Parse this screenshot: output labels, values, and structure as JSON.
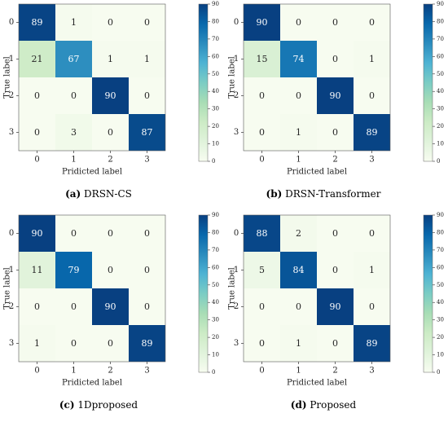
{
  "colorscale": {
    "stops": [
      "#f7fcf0",
      "#e0f3db",
      "#ccebc5",
      "#a8ddb5",
      "#7bccc4",
      "#4eb3d3",
      "#2b8cbe",
      "#0868ac",
      "#084081"
    ],
    "min": 0,
    "max": 90,
    "ticks": [
      0,
      10,
      20,
      30,
      40,
      50,
      60,
      70,
      80,
      90
    ],
    "dark_text_threshold": 45
  },
  "chart_data": [
    {
      "type": "heatmap",
      "caption_letter": "(a)",
      "caption_name": "DRSN-CS",
      "xlabel": "Pridicted label",
      "ylabel": "True label",
      "categories": [
        "0",
        "1",
        "2",
        "3"
      ],
      "values": [
        [
          89,
          1,
          0,
          0
        ],
        [
          21,
          67,
          1,
          1
        ],
        [
          0,
          0,
          90,
          0
        ],
        [
          0,
          3,
          0,
          87
        ]
      ],
      "colorbar_range": [
        0,
        90
      ]
    },
    {
      "type": "heatmap",
      "caption_letter": "(b)",
      "caption_name": "DRSN-Transformer",
      "xlabel": "Pridicted label",
      "ylabel": "True label",
      "categories": [
        "0",
        "1",
        "2",
        "3"
      ],
      "values": [
        [
          90,
          0,
          0,
          0
        ],
        [
          15,
          74,
          0,
          1
        ],
        [
          0,
          0,
          90,
          0
        ],
        [
          0,
          1,
          0,
          89
        ]
      ],
      "colorbar_range": [
        0,
        90
      ]
    },
    {
      "type": "heatmap",
      "caption_letter": "(c)",
      "caption_name": "1Dproposed",
      "xlabel": "Pridicted label",
      "ylabel": "True label",
      "categories": [
        "0",
        "1",
        "2",
        "3"
      ],
      "values": [
        [
          90,
          0,
          0,
          0
        ],
        [
          11,
          79,
          0,
          0
        ],
        [
          0,
          0,
          90,
          0
        ],
        [
          1,
          0,
          0,
          89
        ]
      ],
      "colorbar_range": [
        0,
        90
      ]
    },
    {
      "type": "heatmap",
      "caption_letter": "(d)",
      "caption_name": "Proposed",
      "xlabel": "Pridicted label",
      "ylabel": "True label",
      "categories": [
        "0",
        "1",
        "2",
        "3"
      ],
      "values": [
        [
          88,
          2,
          0,
          0
        ],
        [
          5,
          84,
          0,
          1
        ],
        [
          0,
          0,
          90,
          0
        ],
        [
          0,
          1,
          0,
          89
        ]
      ],
      "colorbar_range": [
        0,
        90
      ]
    }
  ]
}
